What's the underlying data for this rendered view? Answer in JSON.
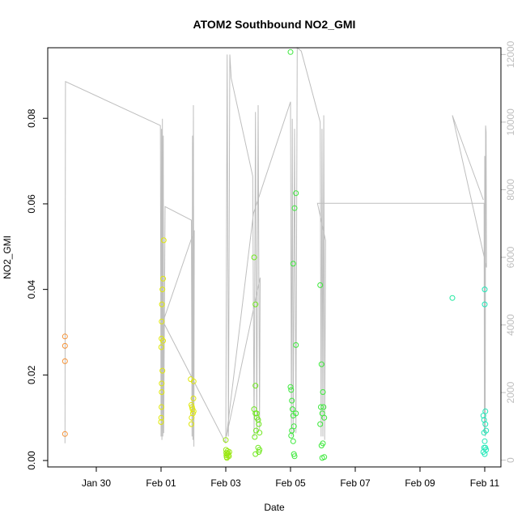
{
  "chart_data": {
    "type": "scatter",
    "title": "ATOM2 Southbound NO2_GMI",
    "xlabel": "Date",
    "ylabel": "NO2_GMI",
    "xlim": [
      "2017-01-28T12:00",
      "2017-02-11T12:00"
    ],
    "ylim": [
      -0.0015,
      0.0965
    ],
    "y2lim": [
      -200,
      12200
    ],
    "x_ticks": [
      {
        "date": "2017-01-30T00:00",
        "label": "Jan 30"
      },
      {
        "date": "2017-02-01T00:00",
        "label": "Feb 01"
      },
      {
        "date": "2017-02-03T00:00",
        "label": "Feb 03"
      },
      {
        "date": "2017-02-05T00:00",
        "label": "Feb 05"
      },
      {
        "date": "2017-02-07T00:00",
        "label": "Feb 07"
      },
      {
        "date": "2017-02-09T00:00",
        "label": "Feb 09"
      },
      {
        "date": "2017-02-11T00:00",
        "label": "Feb 11"
      }
    ],
    "y_ticks": [
      {
        "value": 0.0,
        "label": "0.00"
      },
      {
        "value": 0.02,
        "label": "0.02"
      },
      {
        "value": 0.04,
        "label": "0.04"
      },
      {
        "value": 0.06,
        "label": "0.06"
      },
      {
        "value": 0.08,
        "label": "0.08"
      }
    ],
    "y2_ticks": [
      {
        "value": 0,
        "label": "0"
      },
      {
        "value": 2000,
        "label": "2000"
      },
      {
        "value": 4000,
        "label": "4000"
      },
      {
        "value": 6000,
        "label": "6000"
      },
      {
        "value": 8000,
        "label": "8000"
      },
      {
        "value": 10000,
        "label": "10000"
      },
      {
        "value": 12000,
        "label": "12000"
      }
    ],
    "grid": false,
    "altitude_color": "#bebebe",
    "altitude_path": [
      [
        "2017-01-29T00:48",
        500
      ],
      [
        "2017-01-29T01:10",
        11200
      ],
      [
        "2017-01-31T23:30",
        9900
      ],
      [
        "2017-02-01T00:00",
        700
      ],
      [
        "2017-02-01T00:20",
        9800
      ],
      [
        "2017-02-01T00:40",
        600
      ],
      [
        "2017-02-01T01:00",
        10100
      ],
      [
        "2017-02-01T01:20",
        700
      ],
      [
        "2017-02-01T01:40",
        9600
      ],
      [
        "2017-02-01T02:00",
        800
      ],
      [
        "2017-02-01T03:00",
        7500
      ],
      [
        "2017-02-01T22:30",
        7100
      ],
      [
        "2017-02-01T23:00",
        700
      ],
      [
        "2017-02-01T23:20",
        9600
      ],
      [
        "2017-02-01T23:40",
        600
      ],
      [
        "2017-02-02T00:00",
        10500
      ],
      [
        "2017-02-02T00:20",
        400
      ],
      [
        "2017-02-02T00:40",
        6800
      ],
      [
        "2017-02-01T01:30",
        4100
      ],
      [
        "2017-02-03T00:00",
        500
      ],
      [
        "2017-02-03T01:00",
        12000
      ],
      [
        "2017-02-03T02:00",
        700
      ],
      [
        "2017-02-03T03:00",
        12000
      ],
      [
        "2017-02-03T04:00",
        11300
      ],
      [
        "2017-02-03T20:00",
        8400
      ],
      [
        "2017-02-03T21:00",
        700
      ],
      [
        "2017-02-03T22:00",
        10300
      ],
      [
        "2017-02-03T23:00",
        800
      ],
      [
        "2017-02-04T00:00",
        10500
      ],
      [
        "2017-02-04T01:00",
        900
      ],
      [
        "2017-02-04T01:30",
        5400
      ],
      [
        "2017-02-03T00:30",
        700
      ],
      [
        "2017-02-03T20:30",
        7300
      ],
      [
        "2017-02-05T00:00",
        10600
      ],
      [
        "2017-02-05T00:40",
        700
      ],
      [
        "2017-02-05T01:20",
        10100
      ],
      [
        "2017-02-05T02:00",
        700
      ],
      [
        "2017-02-05T03:00",
        9800
      ],
      [
        "2017-02-05T04:00",
        800
      ],
      [
        "2017-02-05T05:00",
        12200
      ],
      [
        "2017-02-05T08:00",
        12100
      ],
      [
        "2017-02-05T22:00",
        10000
      ],
      [
        "2017-02-05T22:40",
        700
      ],
      [
        "2017-02-05T23:20",
        9800
      ],
      [
        "2017-02-06T00:00",
        700
      ],
      [
        "2017-02-06T00:40",
        10200
      ],
      [
        "2017-02-06T01:20",
        600
      ],
      [
        "2017-02-06T02:00",
        6500
      ],
      [
        "2017-02-05T20:00",
        7600
      ],
      [
        "2017-02-10T23:30",
        7600
      ],
      [
        "2017-02-10T23:45",
        800
      ],
      [
        "2017-02-11T00:00",
        9000
      ],
      [
        "2017-02-11T00:20",
        700
      ],
      [
        "2017-02-11T00:40",
        9900
      ],
      [
        "2017-02-11T01:00",
        9700
      ],
      [
        "2017-02-11T01:20",
        5700
      ],
      [
        "2017-02-10T00:00",
        10200
      ],
      [
        "2017-02-10T23:00",
        7700
      ]
    ],
    "series": [
      {
        "color": "#f59236",
        "points": [
          [
            "2017-01-29T00:48",
            0.029
          ],
          [
            "2017-01-29T00:48",
            0.0268
          ],
          [
            "2017-01-29T00:48",
            0.0232
          ],
          [
            "2017-01-29T00:48",
            0.0062
          ]
        ]
      },
      {
        "color": "#e0e80a",
        "points": [
          [
            "2017-02-01T00:10",
            0.0265
          ],
          [
            "2017-02-01T00:20",
            0.0285
          ],
          [
            "2017-02-01T00:30",
            0.0325
          ],
          [
            "2017-02-01T00:40",
            0.0365
          ],
          [
            "2017-02-01T01:00",
            0.04
          ],
          [
            "2017-02-01T01:30",
            0.0425
          ],
          [
            "2017-02-01T02:00",
            0.0515
          ],
          [
            "2017-02-01T01:00",
            0.021
          ],
          [
            "2017-02-01T00:30",
            0.018
          ],
          [
            "2017-02-01T00:30",
            0.016
          ],
          [
            "2017-02-01T00:20",
            0.0125
          ],
          [
            "2017-02-01T00:10",
            0.01
          ],
          [
            "2017-02-01T00:00",
            0.009
          ],
          [
            "2017-02-01T01:30",
            0.028
          ],
          [
            "2017-02-01T22:00",
            0.019
          ],
          [
            "2017-02-01T22:30",
            0.013
          ],
          [
            "2017-02-01T23:00",
            0.0125
          ],
          [
            "2017-02-01T23:20",
            0.012
          ],
          [
            "2017-02-01T23:40",
            0.011
          ],
          [
            "2017-02-02T00:00",
            0.0145
          ],
          [
            "2017-02-02T00:10",
            0.0115
          ],
          [
            "2017-02-01T22:40",
            0.01
          ],
          [
            "2017-02-01T22:30",
            0.0085
          ],
          [
            "2017-02-02T00:10",
            0.0185
          ]
        ]
      },
      {
        "color": "#9be815",
        "points": [
          [
            "2017-02-03T00:00",
            0.0048
          ],
          [
            "2017-02-03T00:10",
            0.0025
          ],
          [
            "2017-02-03T00:20",
            0.0018
          ],
          [
            "2017-02-03T00:30",
            0.0012
          ],
          [
            "2017-02-03T00:40",
            0.0008
          ],
          [
            "2017-02-03T01:00",
            0.0015
          ],
          [
            "2017-02-03T01:20",
            0.0022
          ],
          [
            "2017-02-03T01:40",
            0.0017
          ],
          [
            "2017-02-03T02:00",
            0.0012
          ],
          [
            "2017-02-03T02:20",
            0.001
          ],
          [
            "2017-02-03T02:40",
            0.002
          ],
          [
            "2017-02-03T00:50",
            0.0006
          ]
        ]
      },
      {
        "color": "#6fe81e",
        "points": [
          [
            "2017-02-03T21:00",
            0.0475
          ],
          [
            "2017-02-03T22:00",
            0.0365
          ],
          [
            "2017-02-03T22:00",
            0.0175
          ],
          [
            "2017-02-03T21:00",
            0.012
          ],
          [
            "2017-02-03T22:00",
            0.011
          ],
          [
            "2017-02-03T23:00",
            0.01
          ],
          [
            "2017-02-04T00:00",
            0.0095
          ],
          [
            "2017-02-04T00:30",
            0.0085
          ],
          [
            "2017-02-03T22:30",
            0.007
          ],
          [
            "2017-02-04T01:00",
            0.0065
          ],
          [
            "2017-02-03T21:30",
            0.0055
          ],
          [
            "2017-02-04T00:00",
            0.003
          ],
          [
            "2017-02-04T01:00",
            0.0025
          ],
          [
            "2017-02-03T22:00",
            0.0015
          ],
          [
            "2017-02-04T00:30",
            0.002
          ],
          [
            "2017-02-03T23:00",
            0.011
          ]
        ]
      },
      {
        "color": "#3be83a",
        "points": [
          [
            "2017-02-05T00:00",
            0.0955
          ],
          [
            "2017-02-05T04:00",
            0.0625
          ],
          [
            "2017-02-05T03:00",
            0.059
          ],
          [
            "2017-02-05T02:00",
            0.046
          ],
          [
            "2017-02-05T04:00",
            0.027
          ],
          [
            "2017-02-05T00:00",
            0.0172
          ],
          [
            "2017-02-05T00:30",
            0.0165
          ],
          [
            "2017-02-05T01:00",
            0.014
          ],
          [
            "2017-02-05T01:30",
            0.012
          ],
          [
            "2017-02-05T02:00",
            0.0105
          ],
          [
            "2017-02-05T04:00",
            0.011
          ],
          [
            "2017-02-05T02:30",
            0.008
          ],
          [
            "2017-02-05T01:00",
            0.007
          ],
          [
            "2017-02-05T00:30",
            0.0058
          ],
          [
            "2017-02-05T02:00",
            0.0045
          ],
          [
            "2017-02-05T02:30",
            0.0015
          ],
          [
            "2017-02-05T03:00",
            0.001
          ],
          [
            "2017-02-05T22:00",
            0.041
          ],
          [
            "2017-02-05T23:00",
            0.0225
          ],
          [
            "2017-02-06T00:00",
            0.016
          ],
          [
            "2017-02-05T22:30",
            0.0125
          ],
          [
            "2017-02-06T00:30",
            0.0125
          ],
          [
            "2017-02-05T23:30",
            0.011
          ],
          [
            "2017-02-06T01:00",
            0.01
          ],
          [
            "2017-02-05T22:00",
            0.0085
          ],
          [
            "2017-02-06T00:00",
            0.004
          ],
          [
            "2017-02-05T23:00",
            0.0035
          ],
          [
            "2017-02-06T01:00",
            0.0008
          ],
          [
            "2017-02-05T23:30",
            0.0006
          ]
        ]
      },
      {
        "color": "#1ce89e",
        "points": [
          [
            "2017-02-10T00:00",
            0.038
          ]
        ]
      },
      {
        "color": "#20e8b8",
        "points": [
          [
            "2017-02-11T00:00",
            0.04
          ],
          [
            "2017-02-11T00:00",
            0.0365
          ],
          [
            "2017-02-11T00:30",
            0.0115
          ],
          [
            "2017-02-10T23:00",
            0.0105
          ],
          [
            "2017-02-10T23:30",
            0.0095
          ],
          [
            "2017-02-11T00:30",
            0.0085
          ],
          [
            "2017-02-11T01:00",
            0.007
          ],
          [
            "2017-02-10T23:30",
            0.0065
          ],
          [
            "2017-02-11T00:00",
            0.0045
          ],
          [
            "2017-02-11T00:30",
            0.003
          ],
          [
            "2017-02-10T23:00",
            0.002
          ],
          [
            "2017-02-11T00:00",
            0.0015
          ],
          [
            "2017-02-11T01:00",
            0.0025
          ],
          [
            "2017-02-10T23:30",
            0.003
          ]
        ]
      }
    ]
  }
}
